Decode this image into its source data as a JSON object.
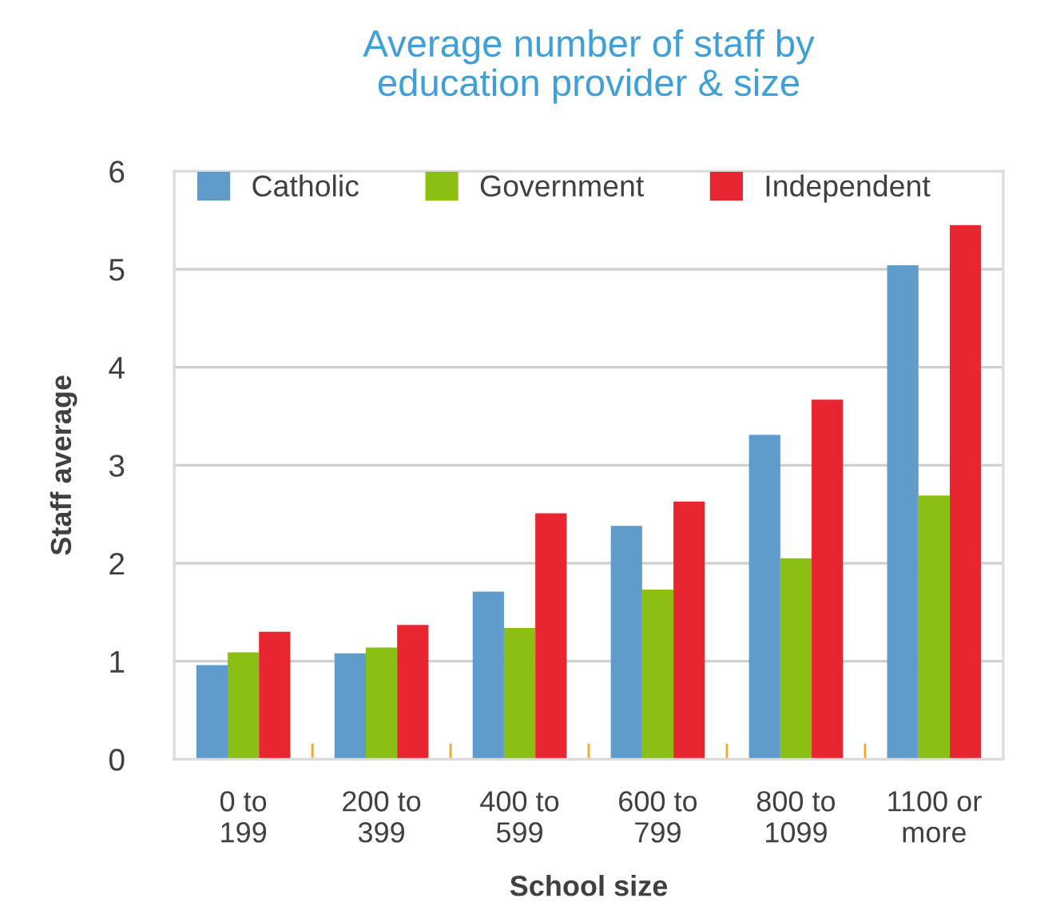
{
  "chart_data": {
    "type": "bar",
    "title": "Average number of staff by\neducation provider & size",
    "xlabel": "School size",
    "ylabel": "Staff average",
    "categories": [
      "0 to\n199",
      "200 to\n399",
      "400 to\n599",
      "600 to\n799",
      "800 to\n1099",
      "1100 or\nmore"
    ],
    "series": [
      {
        "name": "Catholic",
        "color": "#5f9bcb",
        "values": [
          0.96,
          1.08,
          1.71,
          2.38,
          3.31,
          5.04
        ]
      },
      {
        "name": "Government",
        "color": "#8bbf13",
        "values": [
          1.09,
          1.14,
          1.34,
          1.73,
          2.05,
          2.69
        ]
      },
      {
        "name": "Independent",
        "color": "#e8262f",
        "values": [
          1.3,
          1.37,
          2.51,
          2.63,
          3.67,
          5.45
        ]
      }
    ],
    "ylim": [
      0,
      6
    ],
    "yticks": [
      0,
      1,
      2,
      3,
      4,
      5,
      6
    ],
    "grid": "y",
    "legend": "top"
  }
}
